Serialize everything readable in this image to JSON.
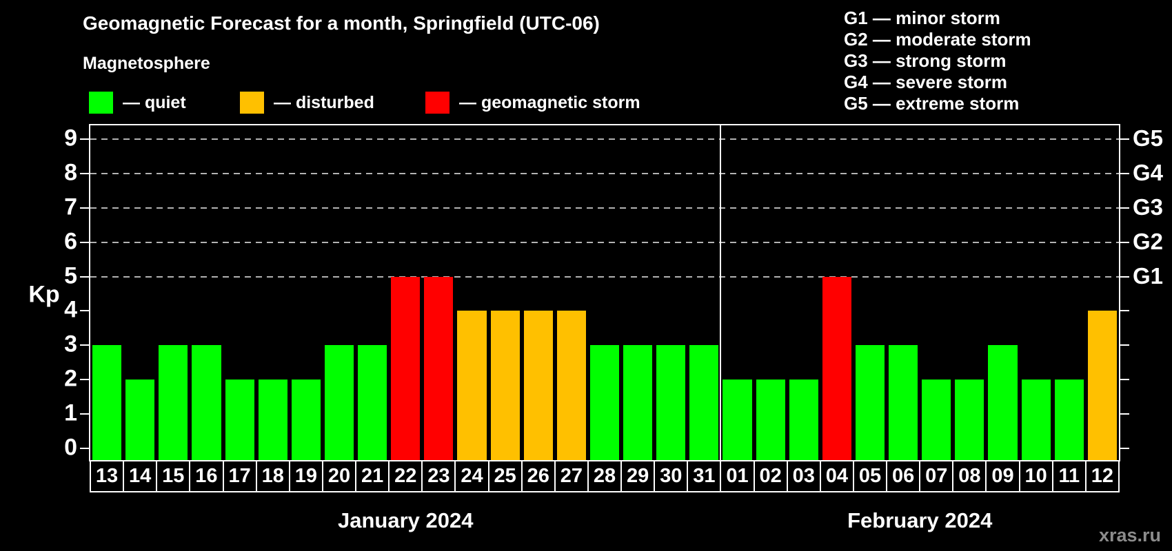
{
  "header": {
    "title": "Geomagnetic Forecast for a month, Springfield (UTC-06)",
    "subtitle": "Magnetosphere"
  },
  "kp_legend": [
    {
      "name": "quiet",
      "label": "— quiet",
      "color": "#00ff00"
    },
    {
      "name": "disturbed",
      "label": "— disturbed",
      "color": "#ffc000"
    },
    {
      "name": "storm",
      "label": "— geomagnetic storm",
      "color": "#ff0000"
    }
  ],
  "g_legend": [
    {
      "code": "G1",
      "label": "G1 — minor storm"
    },
    {
      "code": "G2",
      "label": "G2 — moderate storm"
    },
    {
      "code": "G3",
      "label": "G3 — strong storm"
    },
    {
      "code": "G4",
      "label": "G4 — severe storm"
    },
    {
      "code": "G5",
      "label": "G5 — extreme storm"
    }
  ],
  "y_axis": {
    "label": "Kp",
    "ticks": [
      0,
      1,
      2,
      3,
      4,
      5,
      6,
      7,
      8,
      9
    ]
  },
  "right_axis": [
    {
      "text": "G1",
      "kp": 5
    },
    {
      "text": "G2",
      "kp": 6
    },
    {
      "text": "G3",
      "kp": 7
    },
    {
      "text": "G4",
      "kp": 8
    },
    {
      "text": "G5",
      "kp": 9
    }
  ],
  "watermark": "xras.ru",
  "colors": {
    "background": "#000000",
    "bar_quiet": "#00ff00",
    "bar_disturbed": "#ffc000",
    "bar_storm": "#ff0000",
    "grid": "#b3b3b3",
    "axis": "#ffffff",
    "watermark": "#8c8c8c"
  },
  "chart_data": {
    "type": "bar",
    "title": "Geomagnetic Forecast for a month, Springfield (UTC-06)",
    "subtitle": "Magnetosphere",
    "xlabel": "",
    "ylabel": "Kp",
    "ylim": [
      0,
      9.4
    ],
    "yticks": [
      0,
      1,
      2,
      3,
      4,
      5,
      6,
      7,
      8,
      9
    ],
    "grid_levels": [
      5,
      6,
      7,
      8,
      9
    ],
    "grid_style": "dashed horizontal gridlines only at Kp 5–9 (G1–G5 levels)",
    "legend_position": "top-left",
    "color_thresholds": {
      "quiet_max": 3,
      "disturbed_max": 4
    },
    "months": [
      {
        "label": "January 2024",
        "days": [
          "13",
          "14",
          "15",
          "16",
          "17",
          "18",
          "19",
          "20",
          "21",
          "22",
          "23",
          "24",
          "25",
          "26",
          "27",
          "28",
          "29",
          "30",
          "31"
        ],
        "kp": [
          3,
          2,
          3,
          3,
          2,
          2,
          2,
          3,
          3,
          5,
          5,
          4,
          4,
          4,
          4,
          3,
          3,
          3,
          3
        ]
      },
      {
        "label": "February 2024",
        "days": [
          "01",
          "02",
          "03",
          "04",
          "05",
          "06",
          "07",
          "08",
          "09",
          "10",
          "11",
          "12"
        ],
        "kp": [
          2,
          2,
          2,
          5,
          3,
          3,
          2,
          2,
          3,
          2,
          2,
          4
        ]
      }
    ]
  }
}
